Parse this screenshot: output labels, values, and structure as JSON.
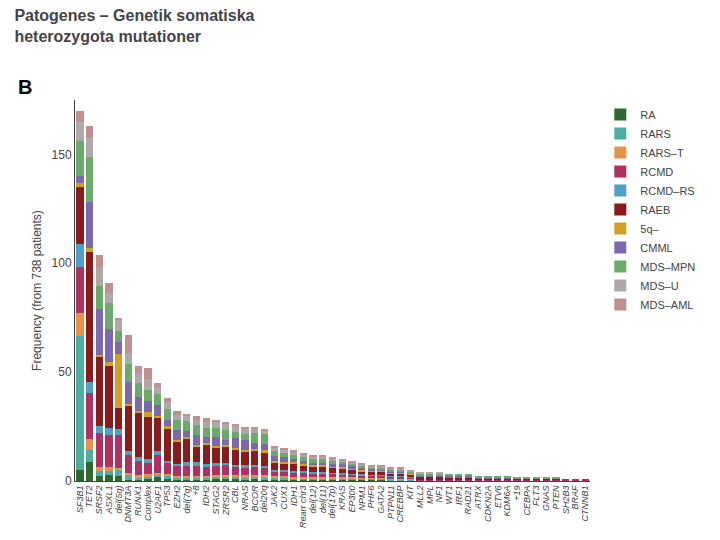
{
  "chart_data": {
    "type": "bar",
    "title": "Patogenes – Genetik somatiska\nheterozygota mutationer",
    "ylabel": "Frequency (from 738 patients)",
    "annotations": [
      {
        "text": "B"
      }
    ],
    "categories": [
      "SF3B1",
      "TET2",
      "SRSF2",
      "ASXL1",
      "del(5q)",
      "DNMT3A",
      "RUNX1",
      "Complex",
      "U2AF1",
      "TP53",
      "EZH2",
      "del(7q)",
      "+8",
      "IDH2",
      "STAG2",
      "ZRSR2",
      "CBL",
      "NRAS",
      "BCOR",
      "del20q",
      "JAK2",
      "CUX1",
      "IDH1",
      "Rearr chr3",
      "del(12)",
      "del(11)",
      "del(17p)",
      "KRAS",
      "EP300",
      "NPM1",
      "PHF6",
      "GATA2",
      "PTPN11",
      "CREBBP",
      "KIT",
      "MLL2",
      "MPL",
      "NF1",
      "WT1",
      "IRF1",
      "RAD21",
      "ATRX",
      "CDKN2A",
      "ETV6",
      "KDM6A",
      "+19",
      "CEBPA",
      "FLT3",
      "GNAS",
      "PTEN",
      "SH2B3",
      "BRAF",
      "CTNNB1"
    ],
    "series": [
      {
        "name": "RA",
        "color": "#2d6a2d",
        "values": [
          5.258,
          8.763,
          2.189,
          2.786,
          2.25,
          0.691,
          0.869,
          1.02,
          1.837,
          1.129,
          0.828,
          0.83,
          0.789,
          0.791,
          0.949,
          0.947,
          0.92,
          0.893,
          0.926,
          0.857,
          0.701,
          0.709,
          0.662,
          0.671,
          0.582,
          0.582,
          0.55,
          0.588,
          0.5625,
          0.51,
          0.46,
          0.46,
          0.405,
          0.434,
          0.357,
          0,
          0,
          0,
          0,
          0,
          0,
          0,
          0,
          0,
          0,
          0,
          0,
          0,
          0,
          0,
          0,
          0,
          0
        ]
      },
      {
        "name": "RARS",
        "color": "#4dafa0",
        "values": [
          61.34,
          5.258,
          2.189,
          1.857,
          3,
          2.072,
          0.869,
          1.02,
          0.918,
          1.129,
          0.828,
          0.83,
          0.789,
          0.791,
          0.949,
          0.947,
          0.92,
          0.893,
          0.926,
          0.857,
          0.701,
          0.709,
          0.662,
          0.671,
          0.582,
          0.582,
          0.55,
          0.588,
          0.5625,
          0.51,
          0.46,
          0.46,
          0.405,
          0.434,
          0.357,
          0,
          0,
          0,
          0,
          0,
          0,
          0,
          0,
          0,
          0,
          0,
          0,
          0,
          0,
          0,
          0,
          0,
          0
        ]
      },
      {
        "name": "RARS–T",
        "color": "#e8914a",
        "values": [
          10.515,
          5.258,
          2.189,
          1.857,
          0.75,
          0.691,
          0.869,
          1.02,
          0.918,
          1.129,
          0.828,
          0.83,
          0.789,
          0.791,
          0.949,
          0.947,
          0.92,
          0.893,
          0.926,
          0.857,
          0.701,
          0.709,
          0.662,
          0.671,
          0.582,
          0.582,
          0.55,
          0.588,
          0.5625,
          0.51,
          0.46,
          0.46,
          0.405,
          0.434,
          0.357,
          0,
          0,
          0,
          0,
          0,
          0,
          0,
          0,
          0,
          0,
          0,
          0,
          0,
          0,
          0,
          0,
          0,
          0
        ]
      },
      {
        "name": "RCMD",
        "color": "#b03060",
        "values": [
          21.031,
          21.032,
          15.326,
          14.857,
          15,
          8.289,
          6.516,
          5.098,
          8.265,
          4.891,
          4.414,
          4.429,
          4.474,
          4.482,
          4.271,
          4.5,
          3.451,
          3.571,
          3.704,
          3.643,
          2.219,
          2.027,
          1.986,
          1.929,
          1.818,
          1.818,
          1.65,
          1.176,
          1.125,
          0.98,
          0.953,
          0.953,
          0.786,
          0.843,
          0.714,
          0.667,
          0.667,
          0.667,
          0.596,
          0.596,
          0.596,
          0.5,
          0.5,
          0.5,
          0.5,
          0.667,
          0.667,
          0.667,
          0.667,
          0.667,
          1,
          1,
          1
        ]
      },
      {
        "name": "RCMD–RS",
        "color": "#4fa0c8",
        "values": [
          10.515,
          5.258,
          3.284,
          2.786,
          3,
          2.072,
          1.738,
          2.039,
          1.837,
          1.129,
          0.828,
          1.661,
          1.842,
          0.791,
          0.949,
          0.947,
          0.92,
          0.893,
          0.926,
          0.857,
          0.701,
          0.709,
          0.662,
          0.671,
          0.582,
          0.582,
          0.55,
          0.588,
          0.5625,
          0.51,
          0.46,
          0.46,
          0.405,
          0.434,
          0.357,
          0,
          0,
          0,
          0,
          0,
          0,
          0,
          0,
          0,
          0,
          0,
          0,
          0,
          0,
          0,
          0,
          0,
          0
        ]
      },
      {
        "name": "RAEB",
        "color": "#8b1a1a",
        "values": [
          26.289,
          59.591,
          31.747,
          28.786,
          9.75,
          20.722,
          20.418,
          19.373,
          15.153,
          14.673,
          10.483,
          10.795,
          7.105,
          8.964,
          6.881,
          7.105,
          7.133,
          6.25,
          6.481,
          6.214,
          3.62,
          3.345,
          3.405,
          2.6,
          2.4,
          2.4,
          2.2,
          2.353,
          1.6875,
          1.49,
          1.413,
          1.413,
          1.19,
          0.843,
          0.714,
          1.333,
          1.333,
          1.333,
          1.211,
          1.211,
          1.211,
          0.5,
          0.5,
          0.5,
          0.5,
          0.667,
          0.667,
          0.667,
          0.667,
          0.667,
          0,
          0,
          0
        ]
      },
      {
        "name": "5q–",
        "color": "#d4a020",
        "values": [
          1.753,
          1.753,
          1.095,
          1.857,
          24.75,
          0.691,
          0.869,
          2.039,
          0.918,
          1.129,
          0.828,
          0.83,
          0.789,
          0.791,
          0.949,
          0.947,
          0.92,
          0.893,
          0.926,
          0.857,
          0.701,
          0.709,
          0.662,
          0.671,
          0.582,
          0.582,
          0.55,
          0.588,
          0.5625,
          0.51,
          0.46,
          0.46,
          0.405,
          0.434,
          0.357,
          0,
          0,
          0,
          0,
          0,
          0,
          0,
          0,
          0,
          0,
          0,
          0,
          0,
          0,
          0,
          0,
          0,
          0
        ]
      },
      {
        "name": "CMML",
        "color": "#7b68ae",
        "values": [
          3.505,
          21.032,
          20.8,
          14.857,
          5.25,
          10.361,
          6.516,
          5.098,
          5.051,
          3.01,
          4.414,
          2.768,
          4.474,
          2.636,
          4.271,
          2.605,
          4.372,
          4.464,
          2.778,
          2.786,
          2.219,
          2.027,
          1.324,
          1.258,
          1.236,
          1.236,
          1.1,
          1.176,
          1.125,
          0.98,
          0.953,
          0.46,
          0.405,
          0.434,
          0.357,
          0.667,
          0.667,
          0.667,
          0.596,
          0.596,
          0.596,
          0.5,
          0.5,
          0.5,
          0.5,
          0,
          0,
          0,
          0,
          0,
          0,
          0,
          0
        ]
      },
      {
        "name": "MDS–MPN",
        "color": "#6aaa6a",
        "values": [
          15.773,
          21.032,
          10.947,
          12.071,
          5.25,
          8.289,
          6.516,
          5.098,
          5.051,
          4.891,
          4.414,
          4.429,
          4.474,
          4.482,
          4.271,
          4.5,
          2.761,
          2.679,
          4.63,
          4.5,
          2.219,
          2.027,
          1.986,
          1.929,
          1.818,
          1.818,
          1.65,
          1.176,
          1.125,
          0.98,
          0.46,
          0.953,
          0.786,
          0.843,
          0.714,
          0.667,
          0.667,
          0.667,
          0.596,
          0.596,
          0.596,
          0.5,
          0.5,
          0.5,
          0.5,
          0.667,
          0.667,
          0.667,
          0.667,
          0.667,
          0,
          0,
          0
        ]
      },
      {
        "name": "MDS–U",
        "color": "#b0a8a8",
        "values": [
          8.763,
          8.763,
          8.758,
          4.643,
          5.25,
          4.835,
          3.91,
          5.098,
          3.214,
          3.01,
          2.483,
          2.768,
          2.632,
          2.636,
          2.61,
          2.605,
          2.761,
          2.679,
          1.852,
          1.714,
          1.518,
          1.318,
          1.324,
          1.258,
          1.236,
          1.236,
          1.1,
          0.588,
          0.5625,
          0.51,
          0.46,
          0.46,
          0.405,
          0.434,
          0.357,
          0.667,
          0.667,
          0.667,
          0,
          0,
          0,
          0,
          0,
          0,
          0,
          0,
          0,
          0,
          0,
          0,
          0,
          0,
          0
        ]
      },
      {
        "name": "MDS–AML",
        "color": "#c09090",
        "values": [
          5.258,
          5.258,
          5.474,
          4.643,
          0.75,
          8.289,
          3.91,
          5.098,
          1.837,
          1.881,
          1.655,
          0.83,
          1.842,
          1.845,
          0.949,
          0.947,
          0.92,
          0.893,
          0.926,
          0.857,
          0.701,
          0.709,
          0.662,
          0.671,
          0.582,
          0.582,
          0.55,
          0.588,
          0.5625,
          0.51,
          0.46,
          0.46,
          0.405,
          0.434,
          0.357,
          0,
          0,
          0,
          0,
          0,
          0,
          0,
          0,
          0,
          0,
          0,
          0,
          0,
          0,
          0,
          0,
          0,
          0
        ]
      }
    ],
    "stacked": true,
    "ylim": [
      0,
      175
    ],
    "yticks": [
      0,
      50,
      100,
      150
    ],
    "grid": false,
    "legend": "right"
  }
}
